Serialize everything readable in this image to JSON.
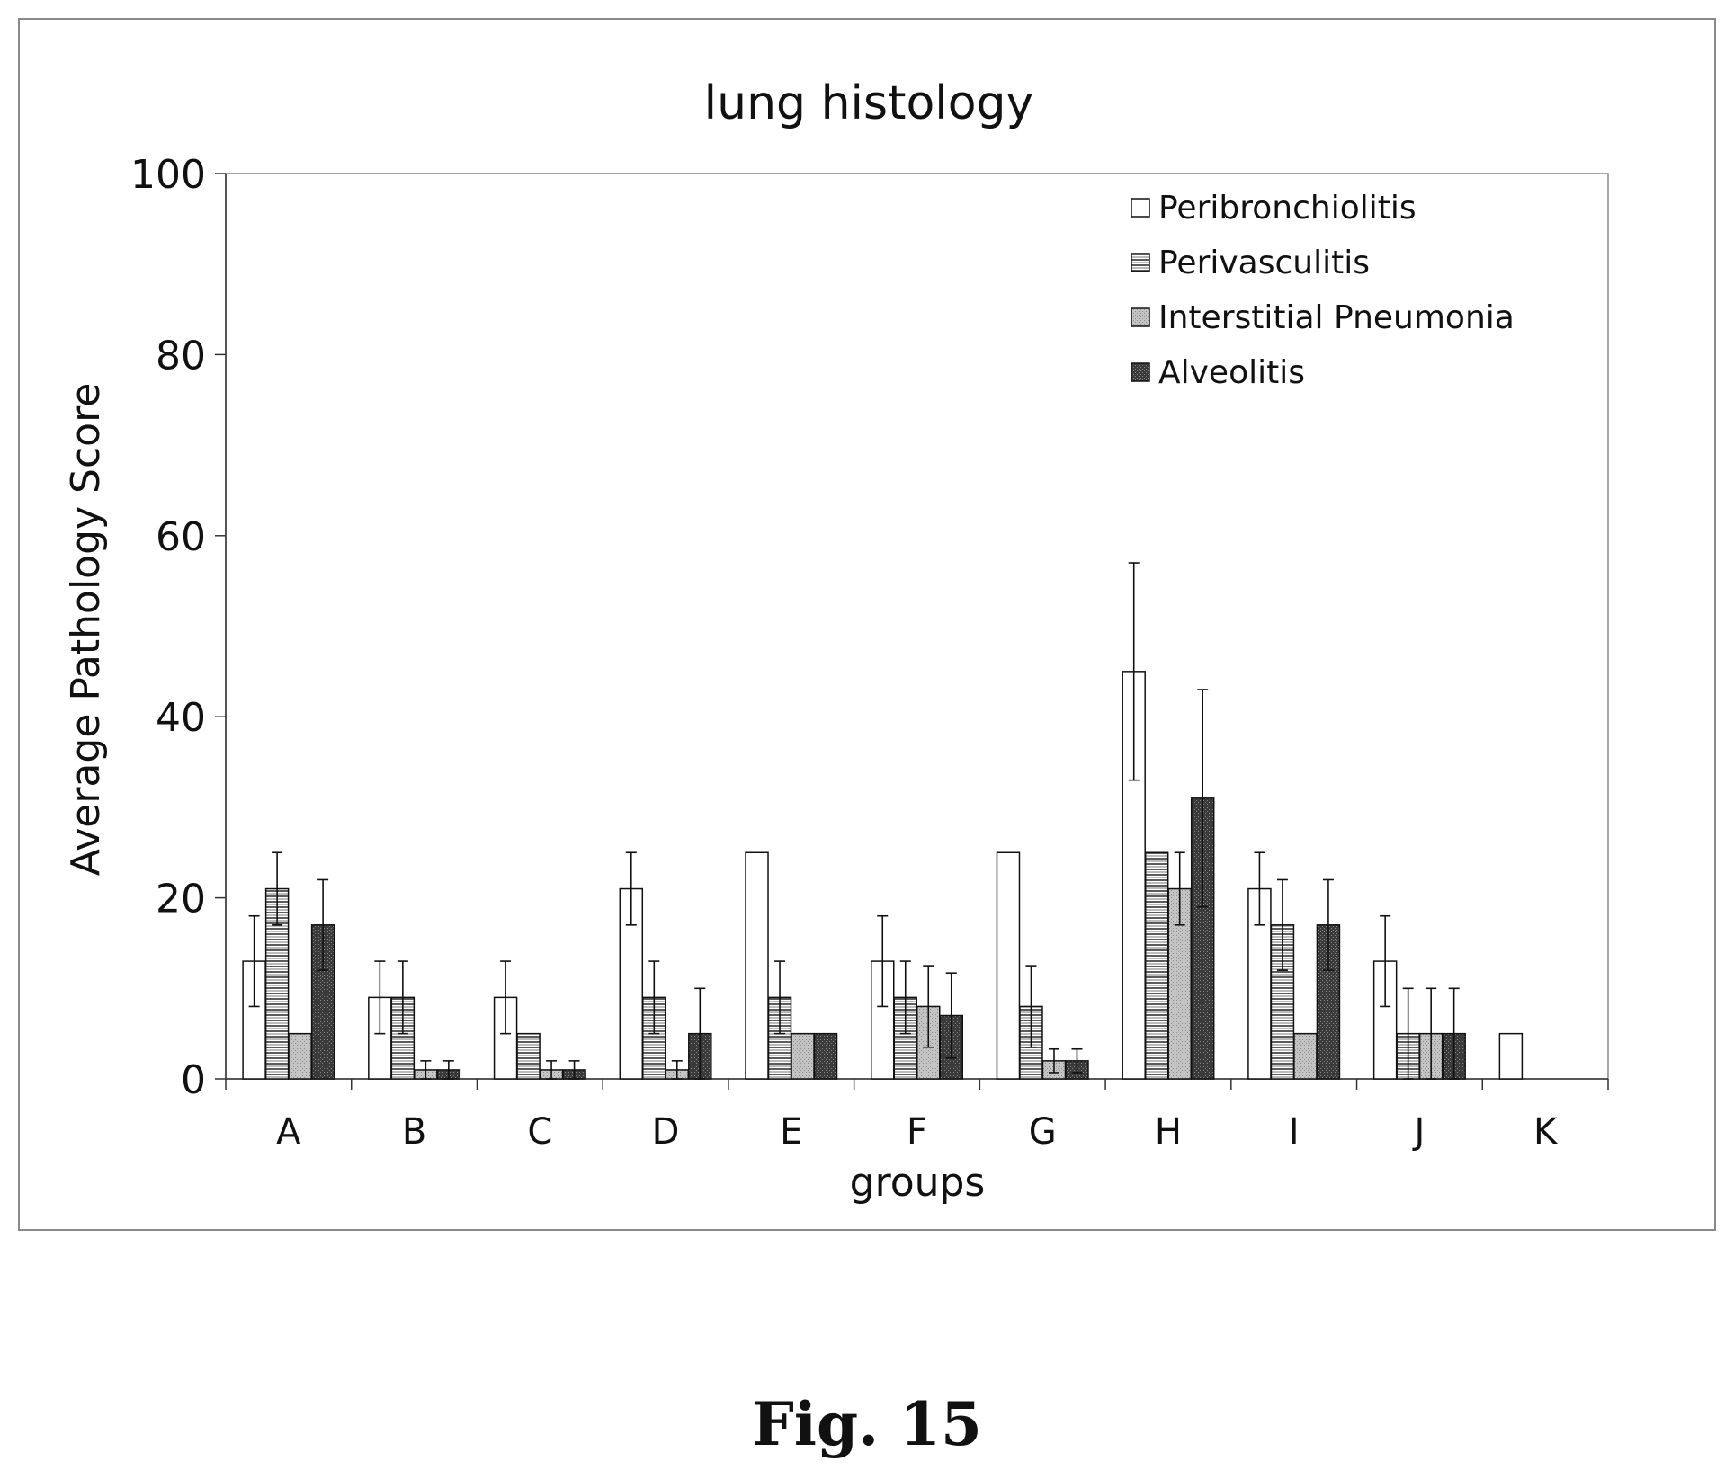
{
  "figure": {
    "caption": "Fig. 15"
  },
  "chart_data": {
    "type": "bar",
    "title": "lung histology",
    "xlabel": "groups",
    "ylabel": "Average Pathology Score",
    "ylim": [
      0,
      100
    ],
    "yticks": [
      0,
      20,
      40,
      60,
      80,
      100
    ],
    "grid": false,
    "legend_position": "top-right",
    "categories": [
      "A",
      "B",
      "C",
      "D",
      "E",
      "F",
      "G",
      "H",
      "I",
      "J",
      "K"
    ],
    "series": [
      {
        "name": "Peribronchiolitis",
        "fill": "none",
        "values": [
          13,
          9,
          9,
          21,
          25,
          13,
          25,
          45,
          21,
          13,
          5
        ],
        "err_low": [
          5,
          4,
          4,
          4,
          0,
          5,
          0,
          12,
          4,
          5,
          0
        ],
        "err_high": [
          5,
          4,
          4,
          4,
          0,
          5,
          0,
          12,
          4,
          5,
          0
        ]
      },
      {
        "name": "Perivasculitis",
        "fill": "horizontal-lines",
        "values": [
          21,
          9,
          5,
          9,
          9,
          9,
          8,
          25,
          17,
          5,
          0
        ],
        "err_low": [
          4,
          4,
          0,
          4,
          4,
          4,
          4.5,
          0,
          5,
          5,
          0
        ],
        "err_high": [
          4,
          4,
          0,
          4,
          4,
          4,
          4.5,
          0,
          5,
          5,
          0
        ]
      },
      {
        "name": "Interstitial Pneumonia",
        "fill": "light-gray",
        "values": [
          5,
          1,
          1,
          1,
          5,
          8,
          2,
          21,
          5,
          5,
          0
        ],
        "err_low": [
          0,
          1,
          1,
          1,
          0,
          4.5,
          1.3,
          4,
          0,
          5,
          0
        ],
        "err_high": [
          0,
          1,
          1,
          1,
          0,
          4.5,
          1.3,
          4,
          0,
          5,
          0
        ]
      },
      {
        "name": "Alveolitis",
        "fill": "dark-gray",
        "values": [
          17,
          1,
          1,
          5,
          5,
          7,
          2,
          31,
          17,
          5,
          0
        ],
        "err_low": [
          5,
          1,
          1,
          5,
          0,
          4.7,
          1.3,
          12,
          5,
          5,
          0
        ],
        "err_high": [
          5,
          1,
          1,
          5,
          0,
          4.7,
          1.3,
          12,
          5,
          5,
          0
        ]
      }
    ]
  }
}
